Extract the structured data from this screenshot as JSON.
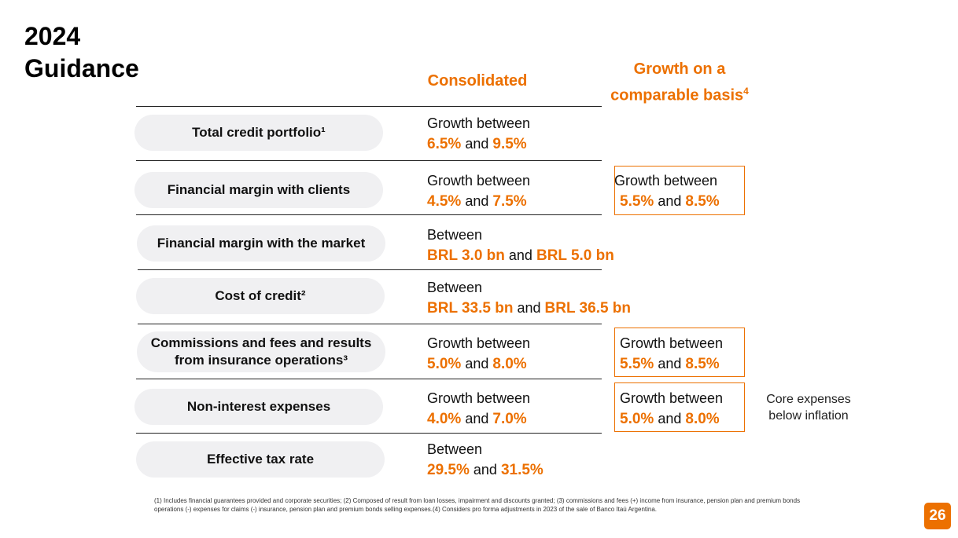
{
  "title": {
    "line1": "2024",
    "line2": "Guidance"
  },
  "columns": {
    "consolidated": "Consolidated",
    "comparable_line1": "Growth on a",
    "comparable_line2": "comparable basis",
    "comparable_sup": "4"
  },
  "rows": [
    {
      "label": "Total credit portfolio¹",
      "prefix": "Growth between",
      "low": "6.5%",
      "and": "and",
      "high": "9.5%"
    },
    {
      "label": "Financial margin with clients",
      "prefix": "Growth between",
      "low": "4.5%",
      "and": "and",
      "high": "7.5%",
      "comp": {
        "prefix": "Growth between",
        "low": "5.5%",
        "and": "and",
        "high": "8.5%"
      }
    },
    {
      "label": "Financial margin with the market",
      "prefix": "Between",
      "low": "BRL 3.0 bn",
      "and": "and",
      "high": "BRL 5.0 bn"
    },
    {
      "label": "Cost of credit²",
      "prefix": "Between",
      "low": "BRL 33.5 bn",
      "and": "and",
      "high": "BRL 36.5 bn"
    },
    {
      "label_line1": "Commissions and fees and results",
      "label_line2": "from insurance operations³",
      "prefix": "Growth between",
      "low": "5.0%",
      "and": "and",
      "high": "8.0%",
      "comp": {
        "prefix": "Growth between",
        "low": "5.5%",
        "and": "and",
        "high": "8.5%"
      }
    },
    {
      "label": "Non-interest expenses",
      "prefix": "Growth between",
      "low": "4.0%",
      "and": "and",
      "high": "7.0%",
      "comp": {
        "prefix": "Growth between",
        "low": "5.0%",
        "and": "and",
        "high": "8.0%"
      }
    },
    {
      "label": "Effective tax rate",
      "prefix": "Between",
      "low": "29.5%",
      "and": "and",
      "high": "31.5%"
    }
  ],
  "note": "Core expenses below inflation",
  "footnote": "(1) Includes financial guarantees provided and corporate securities; (2) Composed of result from loan losses, impairment and discounts granted; (3) commissions and fees (+) income from insurance, pension plan and premium bonds operations (-) expenses for claims (-) insurance, pension plan and premium bonds selling expenses.(4) Considers pro forma adjustments in 2023 of the sale of Banco Itaú Argentina.",
  "page_number": "26",
  "colors": {
    "accent": "#ec7000",
    "pill": "#f0f0f2"
  }
}
